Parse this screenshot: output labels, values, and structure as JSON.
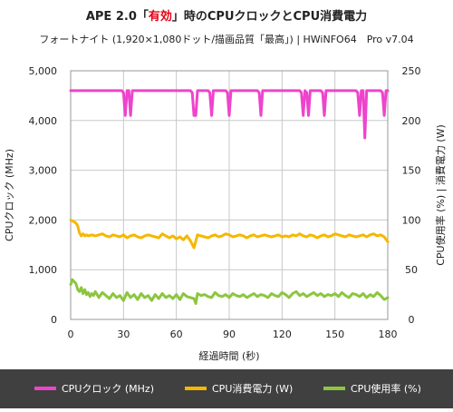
{
  "chart_data": {
    "type": "line",
    "title_prefix": "APE 2.0「",
    "title_highlight": "有効",
    "title_suffix": "」時のCPUクロックとCPU消費電力",
    "subtitle": "フォートナイト (1,920×1,080ドット/描画品質「最高」) | HWiNFO64　Pro v7.04",
    "xlabel": "経過時間 (秒)",
    "ylabel_left": "CPUクロック (MHz)",
    "ylabel_right": "CPU使用率 (%) | 消費電力 (W)",
    "xlim": [
      0,
      180
    ],
    "ylim_left": [
      0,
      5000
    ],
    "ylim_right": [
      0,
      250
    ],
    "x_ticks": [
      "0",
      "30",
      "60",
      "90",
      "120",
      "150",
      "180"
    ],
    "y_ticks_left": [
      "0",
      "1,000",
      "2,000",
      "3,000",
      "4,000",
      "5,000"
    ],
    "y_ticks_right": [
      "0",
      "50",
      "100",
      "150",
      "200",
      "250"
    ],
    "grid": true,
    "legend_position": "bottom",
    "colors": {
      "clock": "#ee44cc",
      "power": "#f5b800",
      "usage": "#8cc63f",
      "title_highlight": "#e60012",
      "legend_background": "#404040",
      "grid": "#c8c8c8"
    },
    "series": [
      {
        "name": "CPUクロック (MHz)",
        "axis": "left",
        "x": [
          0,
          29,
          30,
          31,
          32,
          33,
          34,
          35,
          36,
          68,
          69,
          70,
          71,
          72,
          78,
          79,
          80,
          81,
          82,
          88,
          89,
          90,
          91,
          92,
          106,
          107,
          108,
          109,
          110,
          130,
          131,
          132,
          133,
          134,
          135,
          136,
          142,
          143,
          144,
          145,
          146,
          162,
          163,
          164,
          165,
          166,
          167,
          168,
          169,
          170,
          171,
          176,
          177,
          178,
          179,
          180
        ],
        "values": [
          4600,
          4600,
          4560,
          4100,
          4600,
          4600,
          4100,
          4600,
          4600,
          4600,
          4560,
          4100,
          4100,
          4600,
          4600,
          4560,
          4100,
          4600,
          4600,
          4600,
          4560,
          4100,
          4600,
          4600,
          4600,
          4560,
          4100,
          4600,
          4600,
          4600,
          4560,
          4100,
          4600,
          4560,
          4100,
          4600,
          4600,
          4560,
          4100,
          4600,
          4600,
          4600,
          4560,
          4100,
          4600,
          4600,
          3650,
          4600,
          4600,
          4600,
          4600,
          4600,
          4560,
          4100,
          4600,
          4600
        ]
      },
      {
        "name": "CPU消費電力 (W)",
        "axis": "right",
        "x": [
          0,
          1,
          2,
          3,
          4,
          5,
          6,
          7,
          8,
          9,
          10,
          12,
          14,
          16,
          18,
          20,
          22,
          24,
          26,
          28,
          30,
          32,
          34,
          36,
          38,
          40,
          42,
          44,
          46,
          48,
          50,
          52,
          54,
          56,
          58,
          60,
          62,
          64,
          66,
          68,
          70,
          72,
          74,
          76,
          78,
          80,
          82,
          84,
          86,
          88,
          90,
          92,
          94,
          96,
          98,
          100,
          102,
          104,
          106,
          108,
          110,
          112,
          114,
          116,
          118,
          120,
          122,
          124,
          126,
          128,
          130,
          132,
          134,
          136,
          138,
          140,
          142,
          144,
          146,
          148,
          150,
          152,
          154,
          156,
          158,
          160,
          162,
          164,
          166,
          168,
          170,
          172,
          174,
          176,
          178,
          180
        ],
        "values": [
          100,
          99,
          98,
          97,
          94,
          87,
          84,
          86,
          84,
          85,
          84,
          85,
          84,
          85,
          86,
          84,
          83,
          85,
          84,
          83,
          85,
          82,
          84,
          85,
          83,
          82,
          84,
          85,
          84,
          83,
          82,
          86,
          84,
          82,
          84,
          81,
          83,
          80,
          84,
          79,
          72,
          85,
          84,
          83,
          82,
          84,
          85,
          83,
          84,
          86,
          85,
          83,
          84,
          85,
          84,
          82,
          84,
          85,
          83,
          84,
          85,
          84,
          83,
          84,
          85,
          83,
          84,
          83,
          85,
          84,
          86,
          84,
          83,
          85,
          84,
          82,
          84,
          85,
          83,
          84,
          86,
          85,
          84,
          83,
          85,
          84,
          83,
          84,
          85,
          83,
          85,
          86,
          84,
          85,
          83,
          78
        ]
      },
      {
        "name": "CPU使用率 (%)",
        "axis": "right",
        "x": [
          0,
          1,
          2,
          3,
          4,
          5,
          6,
          7,
          8,
          9,
          10,
          11,
          12,
          13,
          14,
          15,
          16,
          18,
          20,
          22,
          24,
          26,
          28,
          30,
          32,
          34,
          36,
          38,
          40,
          42,
          44,
          46,
          48,
          50,
          52,
          54,
          56,
          58,
          60,
          62,
          64,
          66,
          68,
          70,
          71,
          72,
          74,
          76,
          78,
          80,
          82,
          84,
          86,
          88,
          90,
          92,
          94,
          96,
          98,
          100,
          102,
          104,
          106,
          108,
          110,
          112,
          114,
          116,
          118,
          120,
          122,
          124,
          126,
          128,
          130,
          132,
          134,
          136,
          138,
          140,
          142,
          144,
          146,
          148,
          150,
          152,
          154,
          156,
          158,
          160,
          162,
          164,
          166,
          168,
          170,
          172,
          174,
          176,
          178,
          180
        ],
        "values": [
          35,
          40,
          38,
          36,
          30,
          28,
          32,
          26,
          30,
          25,
          27,
          23,
          26,
          24,
          28,
          25,
          22,
          27,
          24,
          21,
          26,
          22,
          24,
          19,
          27,
          22,
          25,
          20,
          26,
          22,
          24,
          19,
          25,
          21,
          26,
          22,
          24,
          21,
          25,
          20,
          26,
          23,
          22,
          21,
          16,
          26,
          24,
          25,
          23,
          22,
          27,
          24,
          23,
          25,
          22,
          26,
          24,
          23,
          25,
          22,
          24,
          26,
          23,
          25,
          24,
          22,
          26,
          24,
          23,
          27,
          25,
          22,
          26,
          28,
          24,
          26,
          23,
          25,
          27,
          24,
          26,
          23,
          25,
          24,
          26,
          23,
          27,
          24,
          22,
          26,
          25,
          23,
          26,
          22,
          25,
          23,
          27,
          24,
          20,
          22
        ]
      }
    ]
  }
}
